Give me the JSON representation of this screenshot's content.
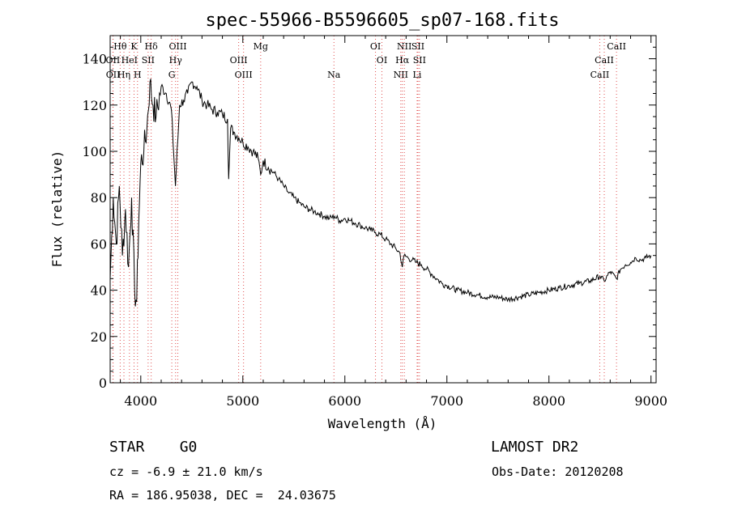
{
  "chart_data": {
    "type": "line",
    "title": "spec-55966-B5596605_sp07-168.fits",
    "xlabel": "Wavelength (Å)",
    "ylabel": "Flux (relative)",
    "xlim": [
      3700,
      9050
    ],
    "ylim": [
      0,
      150
    ],
    "x_ticks": [
      4000,
      5000,
      6000,
      7000,
      8000,
      9000
    ],
    "y_ticks": [
      0,
      20,
      40,
      60,
      80,
      100,
      120,
      140
    ],
    "grid": false,
    "series": [
      {
        "x": [
          3700,
          3730,
          3760,
          3790,
          3820,
          3850,
          3880,
          3910,
          3940,
          3960,
          3980,
          4000,
          4030,
          4060,
          4090,
          4120,
          4150,
          4200,
          4250,
          4300,
          4340,
          4380,
          4420,
          4460,
          4500,
          4550,
          4600,
          4650,
          4700,
          4750,
          4800,
          4850,
          4861,
          4880,
          4920,
          4960,
          5000,
          5050,
          5100,
          5150,
          5175,
          5200,
          5250,
          5300,
          5350,
          5400,
          5450,
          5500,
          5550,
          5600,
          5650,
          5700,
          5750,
          5800,
          5850,
          5900,
          5950,
          6000,
          6050,
          6100,
          6150,
          6200,
          6250,
          6300,
          6350,
          6400,
          6450,
          6500,
          6540,
          6563,
          6580,
          6620,
          6660,
          6700,
          6750,
          6800,
          6850,
          6900,
          6950,
          7000,
          7100,
          7200,
          7300,
          7400,
          7500,
          7600,
          7700,
          7800,
          7900,
          8000,
          8100,
          8200,
          8300,
          8400,
          8500,
          8542,
          8600,
          8662,
          8700,
          8750,
          8800,
          8850,
          8900,
          8950,
          9000
        ],
        "y": [
          45,
          80,
          60,
          85,
          55,
          75,
          50,
          80,
          40,
          35,
          70,
          95,
          100,
          110,
          130,
          120,
          115,
          128,
          125,
          118,
          85,
          120,
          122,
          125,
          130,
          128,
          122,
          120,
          118,
          117,
          116,
          114,
          88,
          110,
          108,
          106,
          104,
          102,
          100,
          97,
          90,
          96,
          93,
          91,
          88,
          85,
          82,
          80,
          78,
          76,
          75,
          74,
          73,
          72,
          71,
          72,
          70,
          71,
          70,
          69,
          68,
          67,
          66,
          65,
          64,
          62,
          60,
          58,
          56,
          50,
          55,
          54,
          53,
          52,
          51,
          49,
          47,
          45,
          43,
          42,
          40,
          39,
          38,
          37,
          37,
          36,
          37,
          38,
          39,
          40,
          41,
          42,
          43,
          44,
          46,
          44,
          48,
          45,
          49,
          51,
          52,
          54,
          53,
          54,
          55
        ]
      }
    ],
    "spectral_lines": [
      {
        "label": "Hθ",
        "x": 3798,
        "row": 0
      },
      {
        "label": "K",
        "x": 3934,
        "row": 0
      },
      {
        "label": "Hδ",
        "x": 4102,
        "row": 0
      },
      {
        "label": "OIII",
        "x": 4363,
        "row": 0
      },
      {
        "label": "Mg",
        "x": 5175,
        "row": 0
      },
      {
        "label": "OI",
        "x": 6300,
        "row": 0
      },
      {
        "label": "NII",
        "x": 6583,
        "row": 0
      },
      {
        "label": "SII",
        "x": 6716,
        "row": 0
      },
      {
        "label": "CaII",
        "x": 8662,
        "row": 0
      },
      {
        "label": "OII",
        "x": 3727,
        "row": 1
      },
      {
        "label": "HeI",
        "x": 3889,
        "row": 1
      },
      {
        "label": "SII",
        "x": 4072,
        "row": 1
      },
      {
        "label": "Hγ",
        "x": 4341,
        "row": 1
      },
      {
        "label": "OIII",
        "x": 4959,
        "row": 1
      },
      {
        "label": "OI",
        "x": 6363,
        "row": 1
      },
      {
        "label": "Hα",
        "x": 6563,
        "row": 1
      },
      {
        "label": "SII",
        "x": 6731,
        "row": 1
      },
      {
        "label": "CaII",
        "x": 8542,
        "row": 1
      },
      {
        "label": "OII",
        "x": 3729,
        "row": 2
      },
      {
        "label": "Hη",
        "x": 3835,
        "row": 2
      },
      {
        "label": "H",
        "x": 3968,
        "row": 2
      },
      {
        "label": "G",
        "x": 4304,
        "row": 2
      },
      {
        "label": "OIII",
        "x": 5007,
        "row": 2
      },
      {
        "label": "Na",
        "x": 5893,
        "row": 2
      },
      {
        "label": "NII",
        "x": 6548,
        "row": 2
      },
      {
        "label": "Li",
        "x": 6708,
        "row": 2
      },
      {
        "label": "CaII",
        "x": 8498,
        "row": 2
      }
    ]
  },
  "info": {
    "class_text": "STAR    G0",
    "survey_text": "LAMOST DR2",
    "cz_text": "cz = -6.9 ± 21.0 km/s",
    "obs_date_text": "Obs-Date: 20120208",
    "radec_text": "RA = 186.95038, DEC =  24.03675"
  }
}
